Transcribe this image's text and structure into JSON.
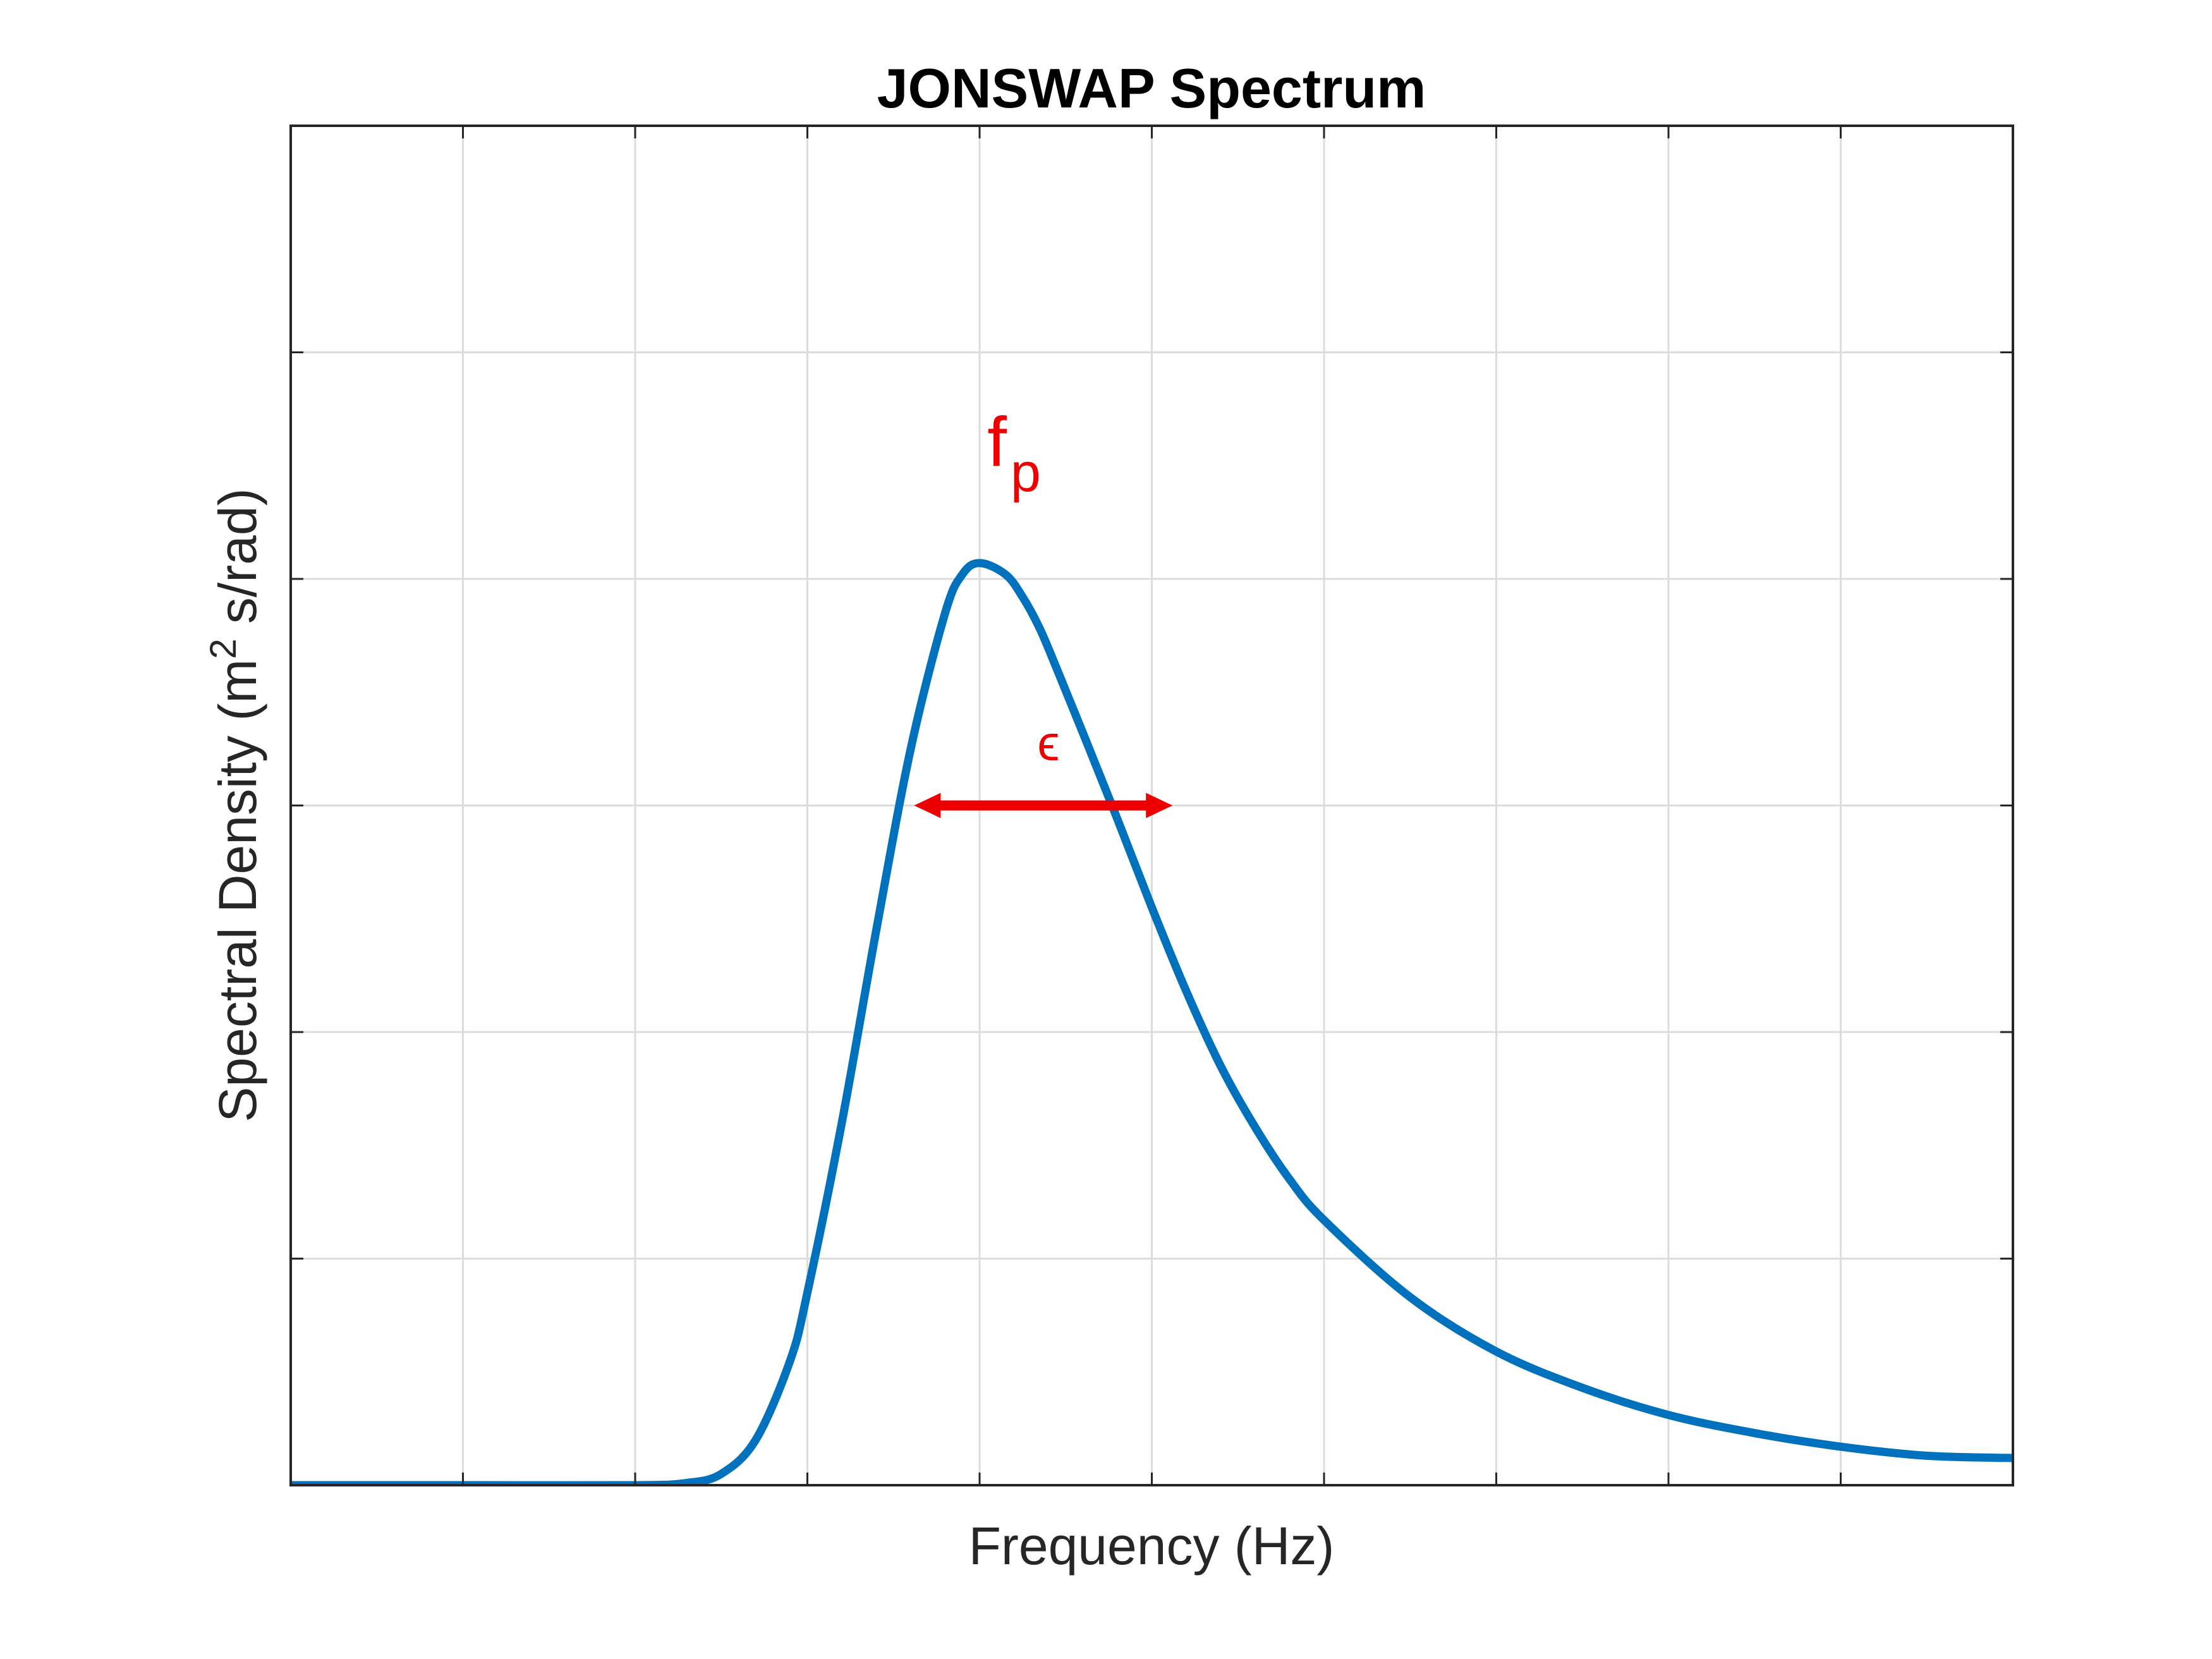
{
  "chart_data": {
    "type": "line",
    "title": "JONSWAP Spectrum",
    "xlabel": "Frequency (Hz)",
    "ylabel": {
      "prefix": "Spectral Density (m",
      "superscript": "2",
      "suffix": " s/rad)"
    },
    "xlim": [
      0,
      10
    ],
    "ylim": [
      0,
      6
    ],
    "x_ticks": [
      0,
      1,
      2,
      3,
      4,
      5,
      6,
      7,
      8,
      9,
      10
    ],
    "y_ticks": [
      0,
      1,
      2,
      3,
      4,
      5,
      6
    ],
    "tick_labels_shown": false,
    "grid": true,
    "series": [
      {
        "name": "JONSWAP spectrum",
        "color": "#0072bd",
        "x": [
          0,
          1,
          2,
          2.3,
          2.5,
          2.7,
          2.9,
          3.0,
          3.2,
          3.4,
          3.6,
          3.8,
          3.9,
          4.0,
          4.15,
          4.25,
          4.35,
          4.45,
          4.6,
          4.8,
          5.0,
          5.2,
          5.4,
          5.6,
          5.8,
          6.0,
          6.5,
          7.0,
          7.5,
          8.0,
          8.5,
          9.0,
          9.5,
          10.0
        ],
        "y": [
          0,
          0,
          0,
          0.01,
          0.05,
          0.2,
          0.55,
          0.85,
          1.6,
          2.45,
          3.25,
          3.85,
          4.02,
          4.07,
          4.02,
          3.92,
          3.78,
          3.6,
          3.32,
          2.94,
          2.55,
          2.18,
          1.85,
          1.58,
          1.35,
          1.17,
          0.83,
          0.59,
          0.43,
          0.31,
          0.23,
          0.17,
          0.13,
          0.12
        ]
      }
    ],
    "annotations": [
      {
        "kind": "label",
        "main": "f",
        "subscript": "p",
        "x": 4.2,
        "y": 4.5,
        "color": "#ee0000"
      },
      {
        "kind": "label",
        "main": "ϵ",
        "x": 4.4,
        "y": 3.2,
        "color": "#ee0000"
      },
      {
        "kind": "double-arrow",
        "x_start": 3.62,
        "x_end": 5.12,
        "y": 3.0,
        "color": "#ee0000"
      }
    ]
  }
}
